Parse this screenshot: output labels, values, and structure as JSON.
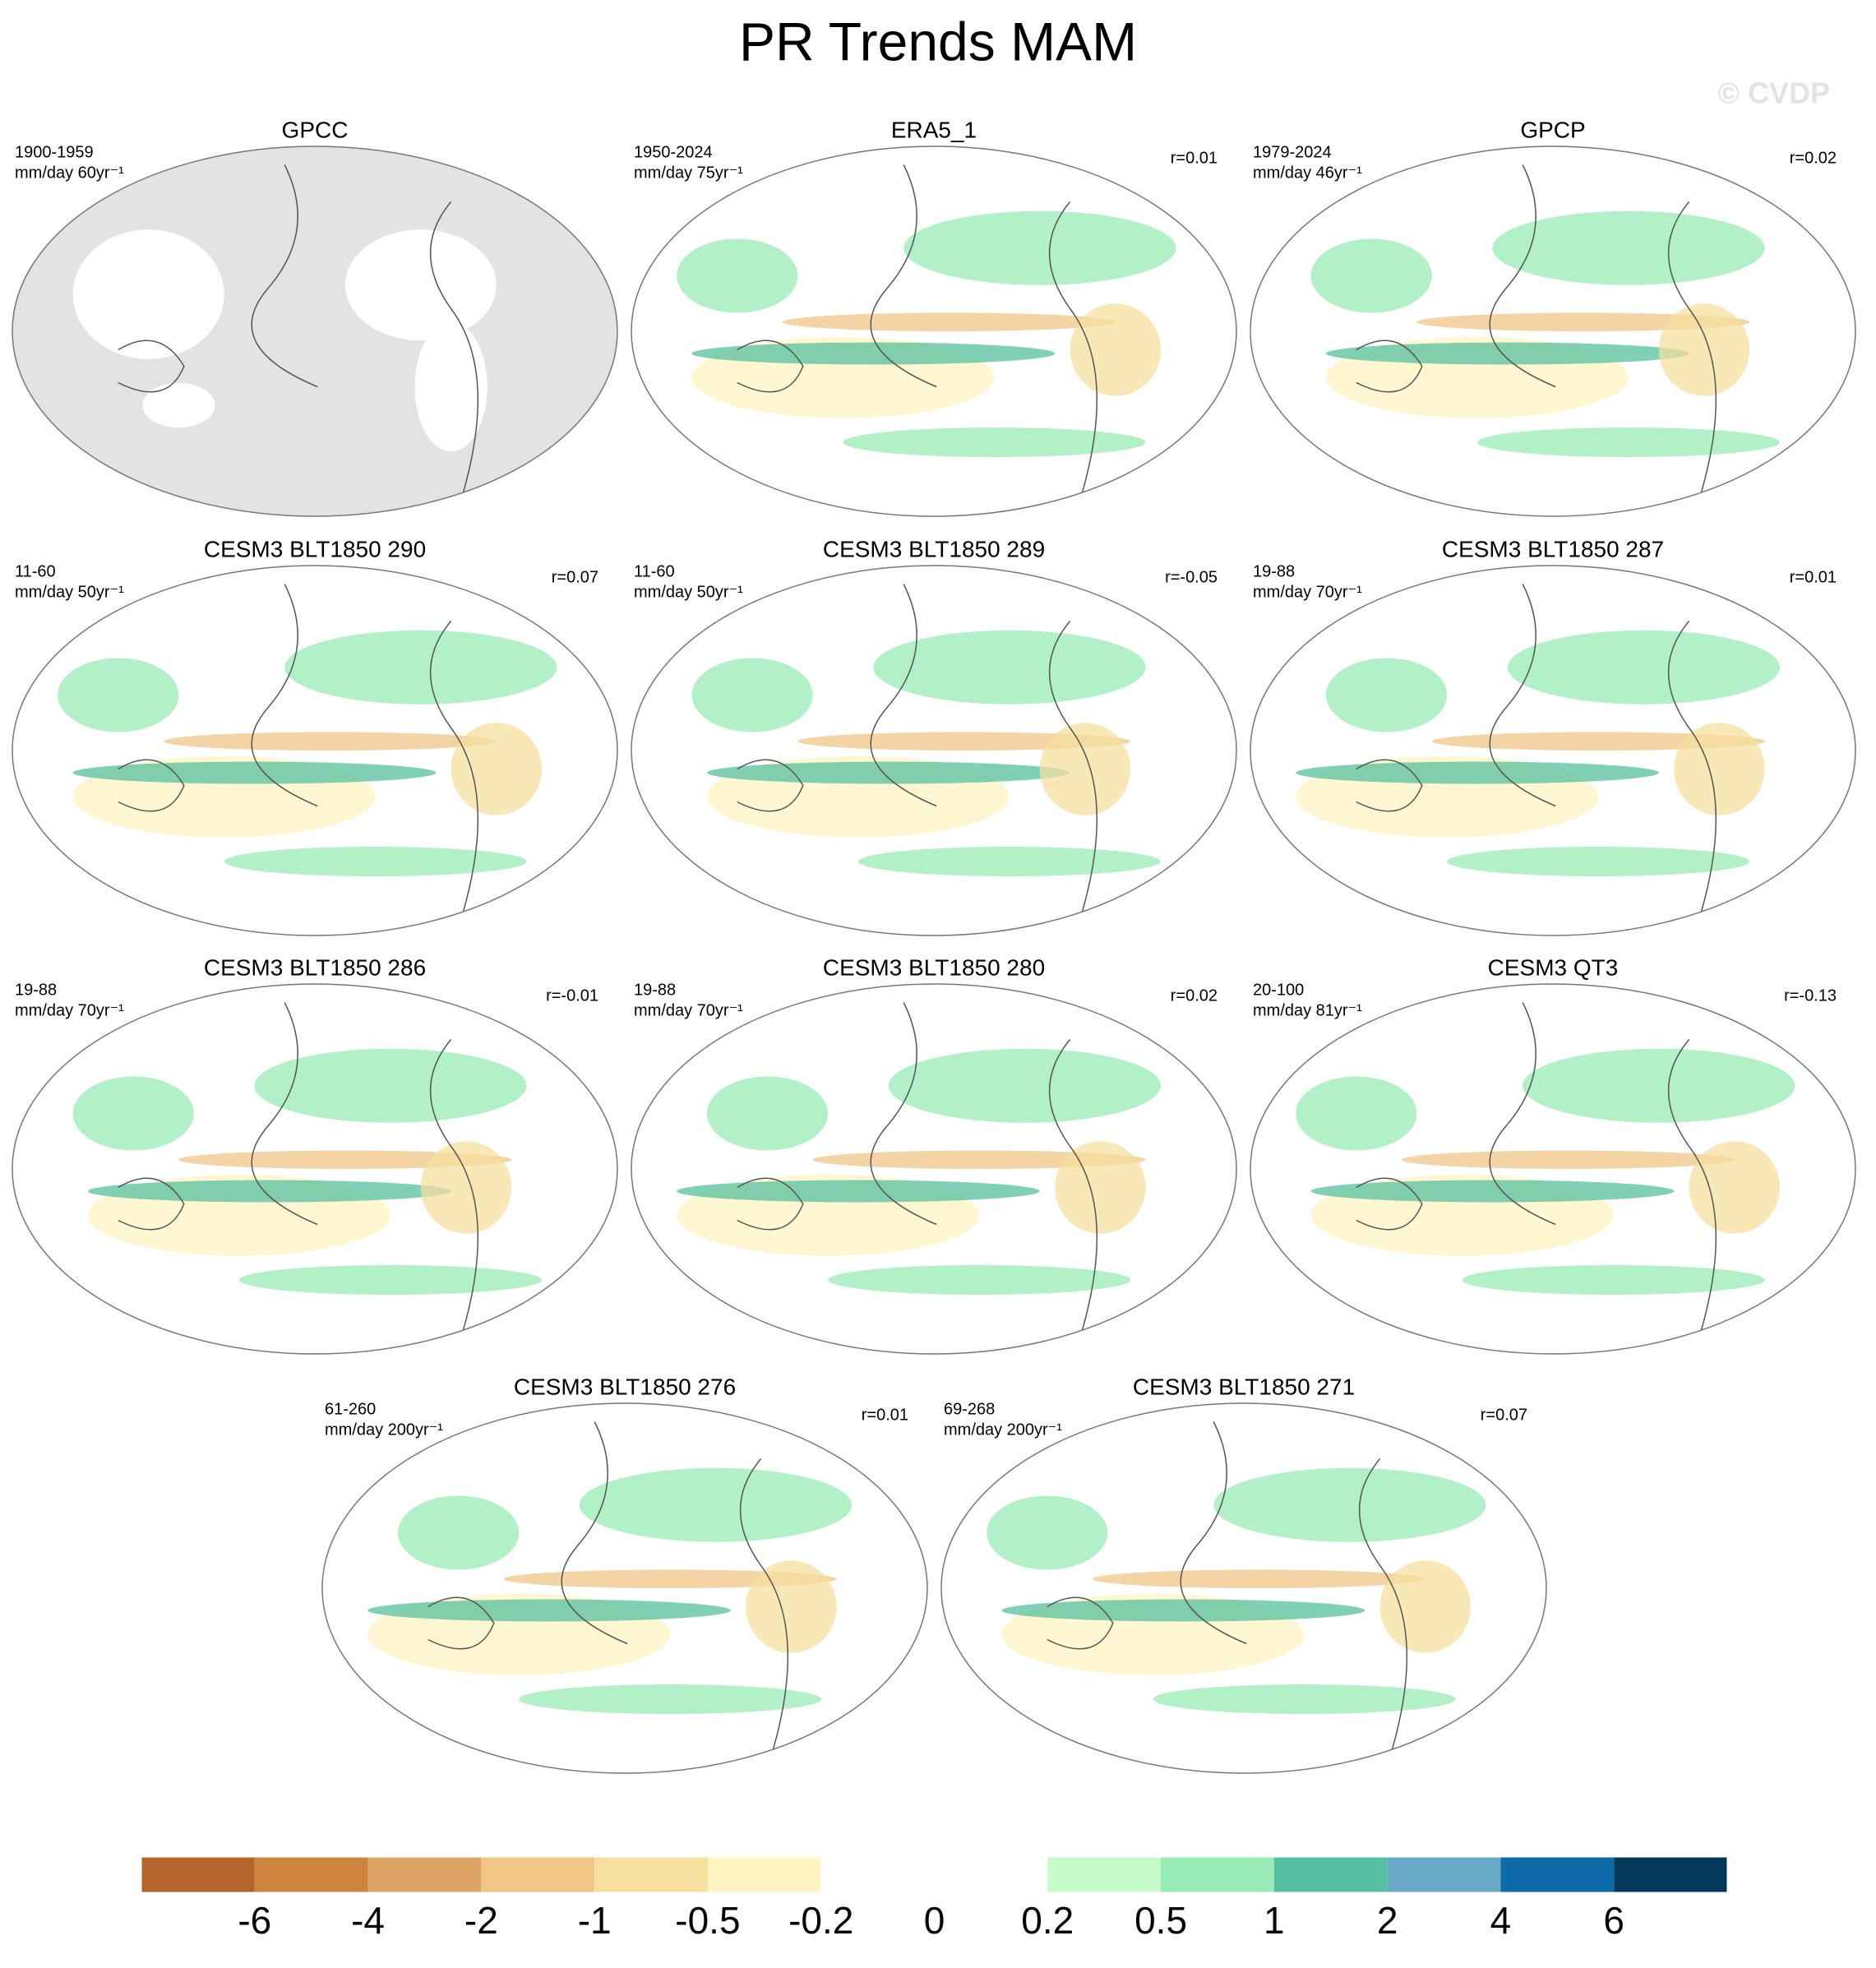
{
  "title": "PR Trends MAM",
  "watermark": "© CVDP",
  "panels": [
    {
      "title": "GPCC",
      "period": "1900-1959",
      "units": "mm/day 60yr⁻¹",
      "missing": true
    },
    {
      "title": "ERA5_1",
      "period": "1950-2024",
      "units": "mm/day 75yr⁻¹",
      "r": "r=0.01"
    },
    {
      "title": "GPCP",
      "period": "1979-2024",
      "units": "mm/day 46yr⁻¹",
      "r": "r=0.02"
    },
    {
      "title": "CESM3 BLT1850 290",
      "period": "11-60",
      "units": "mm/day 50yr⁻¹",
      "r": "r=0.07"
    },
    {
      "title": "CESM3 BLT1850 289",
      "period": "11-60",
      "units": "mm/day 50yr⁻¹",
      "r": "r=-0.05"
    },
    {
      "title": "CESM3 BLT1850 287",
      "period": "19-88",
      "units": "mm/day 70yr⁻¹",
      "r": "r=0.01"
    },
    {
      "title": "CESM3 BLT1850 286",
      "period": "19-88",
      "units": "mm/day 70yr⁻¹",
      "r": "r=-0.01"
    },
    {
      "title": "CESM3 BLT1850 280",
      "period": "19-88",
      "units": "mm/day 70yr⁻¹",
      "r": "r=0.02"
    },
    {
      "title": "CESM3 QT3",
      "period": "20-100",
      "units": "mm/day 81yr⁻¹",
      "r": "r=-0.13"
    },
    {
      "title": "CESM3 BLT1850 276",
      "period": "61-260",
      "units": "mm/day 200yr⁻¹",
      "r": "r=0.01"
    },
    {
      "title": "CESM3 BLT1850 271",
      "period": "69-268",
      "units": "mm/day 200yr⁻¹",
      "r": "r=0.07"
    }
  ],
  "colorbar": {
    "colors": [
      "#b5652a",
      "#cc843e",
      "#dea465",
      "#f0c585",
      "#f5df9f",
      "#fff4c2",
      "#ffffff",
      "#ffffff",
      "#c6fac9",
      "#98ebb4",
      "#55c09f",
      "#6aa8c8",
      "#0f6aaa",
      "#033858"
    ],
    "labels": [
      -6,
      -4,
      -2,
      -1,
      -0.5,
      -0.2,
      0,
      0.2,
      0.5,
      1,
      2,
      4,
      6
    ]
  }
}
